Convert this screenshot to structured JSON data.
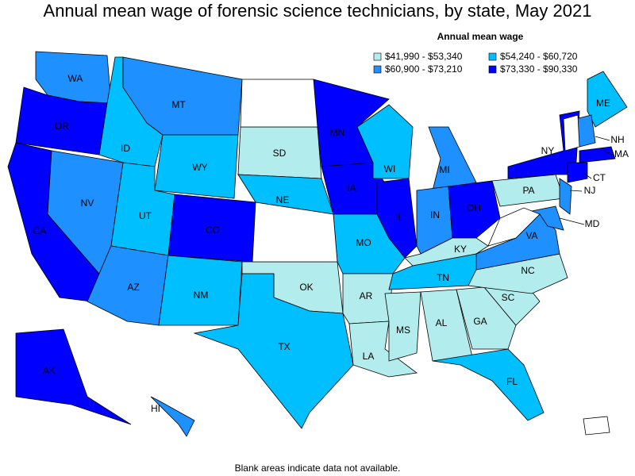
{
  "title": "Annual mean wage of forensic science technicians, by state, May 2021",
  "legend": {
    "title": "Annual mean wage",
    "classes": [
      {
        "label": "$41,990 - $53,340",
        "color": "#b3ecec"
      },
      {
        "label": "$54,240 - $60,720",
        "color": "#00bfff"
      },
      {
        "label": "$60,900 - $73,210",
        "color": "#1e90ff"
      },
      {
        "label": "$73,330 - $90,330",
        "color": "#0000ff"
      }
    ]
  },
  "states": [
    {
      "label": "WA",
      "class": 2
    },
    {
      "label": "OR",
      "class": 3
    },
    {
      "label": "CA",
      "class": 3
    },
    {
      "label": "NV",
      "class": 2
    },
    {
      "label": "ID",
      "class": 1
    },
    {
      "label": "MT",
      "class": 2
    },
    {
      "label": "WY",
      "class": 1
    },
    {
      "label": "UT",
      "class": 1
    },
    {
      "label": "CO",
      "class": 3
    },
    {
      "label": "AZ",
      "class": 2
    },
    {
      "label": "NM",
      "class": 1
    },
    {
      "label": "SD",
      "class": 0
    },
    {
      "label": "NE",
      "class": 1
    },
    {
      "label": "OK",
      "class": 0
    },
    {
      "label": "TX",
      "class": 1
    },
    {
      "label": "MN",
      "class": 3
    },
    {
      "label": "IA",
      "class": 3
    },
    {
      "label": "MO",
      "class": 1
    },
    {
      "label": "AR",
      "class": 0
    },
    {
      "label": "LA",
      "class": 0
    },
    {
      "label": "WI",
      "class": 1
    },
    {
      "label": "IL",
      "class": 3
    },
    {
      "label": "MI",
      "class": 2
    },
    {
      "label": "IN",
      "class": 2
    },
    {
      "label": "OH",
      "class": 3
    },
    {
      "label": "KY",
      "class": 0
    },
    {
      "label": "TN",
      "class": 1
    },
    {
      "label": "MS",
      "class": 0
    },
    {
      "label": "AL",
      "class": 0
    },
    {
      "label": "GA",
      "class": 0
    },
    {
      "label": "FL",
      "class": 1
    },
    {
      "label": "SC",
      "class": 0
    },
    {
      "label": "NC",
      "class": 0
    },
    {
      "label": "VA",
      "class": 2
    },
    {
      "label": "PA",
      "class": 0
    },
    {
      "label": "NY",
      "class": 3
    },
    {
      "label": "ME",
      "class": 1
    },
    {
      "label": "NH",
      "class": 2
    },
    {
      "label": "MA",
      "class": 3
    },
    {
      "label": "CT",
      "class": 3
    },
    {
      "label": "NJ",
      "class": 2
    },
    {
      "label": "MD",
      "class": 2
    },
    {
      "label": "AK",
      "class": 3
    },
    {
      "label": "HI",
      "class": 2
    }
  ],
  "note": "Blank areas indicate data not available."
}
